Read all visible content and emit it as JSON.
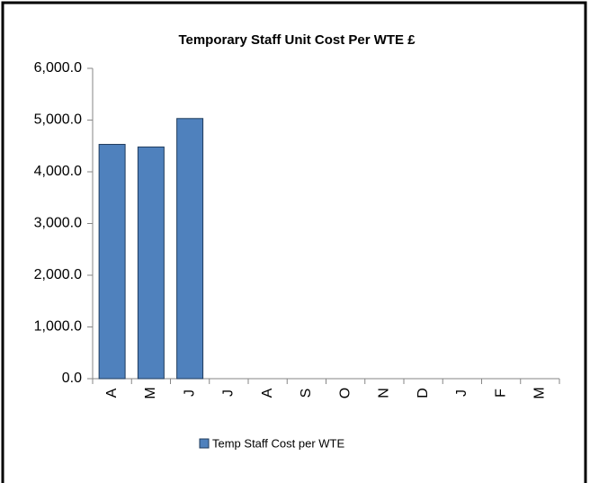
{
  "chart_data": {
    "type": "bar",
    "title": "Temporary Staff Unit Cost Per WTE £",
    "categories": [
      "A",
      "M",
      "J",
      "J",
      "A",
      "S",
      "O",
      "N",
      "D",
      "J",
      "F",
      "M"
    ],
    "series": [
      {
        "name": "Temp Staff Cost per WTE",
        "color": "#4f81bd",
        "values": [
          4530,
          4480,
          5030,
          null,
          null,
          null,
          null,
          null,
          null,
          null,
          null,
          null
        ]
      }
    ],
    "ylim": [
      0,
      6000
    ],
    "yticks": [
      {
        "value": 0,
        "label": "0.0"
      },
      {
        "value": 1000,
        "label": "1,000.0"
      },
      {
        "value": 2000,
        "label": "2,000.0"
      },
      {
        "value": 3000,
        "label": "3,000.0"
      },
      {
        "value": 4000,
        "label": "4,000.0"
      },
      {
        "value": 5000,
        "label": "5,000.0"
      },
      {
        "value": 6000,
        "label": "6,000.0"
      }
    ],
    "grid": false,
    "legend": "bottom"
  }
}
